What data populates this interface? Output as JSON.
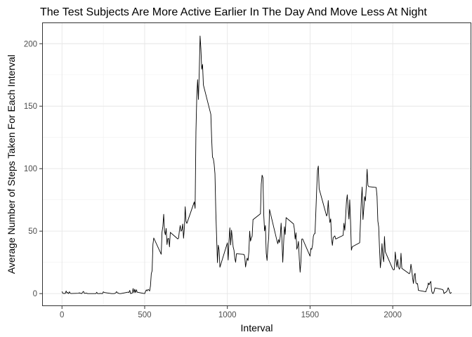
{
  "chart_data": {
    "type": "line",
    "title": "The Test Subjects Are More Active Earlier In The Day And Move Less At Night",
    "xlabel": "Interval",
    "ylabel": "Average Number of Steps Taken For Each Interval",
    "xlim": [
      -120,
      2475
    ],
    "ylim": [
      -10,
      217
    ],
    "x_ticks": [
      0,
      500,
      1000,
      1500,
      2000
    ],
    "y_ticks": [
      0,
      50,
      100,
      150,
      200
    ],
    "grid": true,
    "legend": "none",
    "line_color": "#000000",
    "points": [
      [
        0,
        1.7
      ],
      [
        5,
        0.3
      ],
      [
        10,
        0.1
      ],
      [
        15,
        0.2
      ],
      [
        20,
        0.1
      ],
      [
        25,
        2.1
      ],
      [
        30,
        0.5
      ],
      [
        35,
        0.9
      ],
      [
        40,
        0
      ],
      [
        45,
        1.5
      ],
      [
        50,
        0.3
      ],
      [
        55,
        0.1
      ],
      [
        100,
        0.3
      ],
      [
        105,
        0.7
      ],
      [
        110,
        0.2
      ],
      [
        115,
        0.3
      ],
      [
        120,
        0
      ],
      [
        125,
        1.1
      ],
      [
        130,
        1.8
      ],
      [
        135,
        0.2
      ],
      [
        140,
        0.2
      ],
      [
        145,
        0.4
      ],
      [
        150,
        0.3
      ],
      [
        155,
        0
      ],
      [
        200,
        0
      ],
      [
        205,
        0
      ],
      [
        210,
        1.1
      ],
      [
        215,
        0
      ],
      [
        220,
        0
      ],
      [
        225,
        0.1
      ],
      [
        230,
        0
      ],
      [
        235,
        0.2
      ],
      [
        240,
        0
      ],
      [
        245,
        0
      ],
      [
        250,
        1.5
      ],
      [
        255,
        0.9
      ],
      [
        300,
        0
      ],
      [
        305,
        0
      ],
      [
        310,
        0
      ],
      [
        315,
        0
      ],
      [
        320,
        0.2
      ],
      [
        325,
        0.6
      ],
      [
        330,
        1.6
      ],
      [
        335,
        0.6
      ],
      [
        340,
        0.5
      ],
      [
        345,
        0.1
      ],
      [
        350,
        0
      ],
      [
        355,
        0
      ],
      [
        400,
        1.2
      ],
      [
        405,
        0.9
      ],
      [
        410,
        2.6
      ],
      [
        415,
        0
      ],
      [
        420,
        0.3
      ],
      [
        425,
        0.4
      ],
      [
        430,
        4.1
      ],
      [
        435,
        0.7
      ],
      [
        440,
        3.5
      ],
      [
        445,
        0.8
      ],
      [
        450,
        3.1
      ],
      [
        455,
        1.1
      ],
      [
        500,
        0
      ],
      [
        505,
        1.6
      ],
      [
        510,
        3
      ],
      [
        515,
        2.2
      ],
      [
        520,
        3.3
      ],
      [
        525,
        3
      ],
      [
        530,
        2.1
      ],
      [
        535,
        6.1
      ],
      [
        540,
        16
      ],
      [
        545,
        18.3
      ],
      [
        550,
        39.5
      ],
      [
        555,
        44.5
      ],
      [
        600,
        31.5
      ],
      [
        605,
        49.3
      ],
      [
        610,
        53.8
      ],
      [
        615,
        63.5
      ],
      [
        620,
        50
      ],
      [
        625,
        47.1
      ],
      [
        630,
        52.2
      ],
      [
        635,
        39.3
      ],
      [
        640,
        44
      ],
      [
        645,
        44.2
      ],
      [
        650,
        37.4
      ],
      [
        655,
        49
      ],
      [
        700,
        43.8
      ],
      [
        705,
        44.4
      ],
      [
        710,
        50.5
      ],
      [
        715,
        54.5
      ],
      [
        720,
        49.9
      ],
      [
        725,
        51
      ],
      [
        730,
        55.7
      ],
      [
        735,
        44.3
      ],
      [
        740,
        52.3
      ],
      [
        745,
        69.5
      ],
      [
        750,
        57.8
      ],
      [
        755,
        56.2
      ],
      [
        800,
        73.4
      ],
      [
        805,
        68.2
      ],
      [
        810,
        129.4
      ],
      [
        815,
        157.5
      ],
      [
        820,
        171.2
      ],
      [
        825,
        155.4
      ],
      [
        830,
        177.3
      ],
      [
        835,
        206.2
      ],
      [
        840,
        195.9
      ],
      [
        845,
        179.6
      ],
      [
        850,
        183.4
      ],
      [
        855,
        167
      ],
      [
        900,
        143.5
      ],
      [
        905,
        124
      ],
      [
        910,
        109.1
      ],
      [
        915,
        108.1
      ],
      [
        920,
        103.7
      ],
      [
        925,
        95.9
      ],
      [
        930,
        66.2
      ],
      [
        935,
        45.2
      ],
      [
        940,
        24.8
      ],
      [
        945,
        38.8
      ],
      [
        950,
        35
      ],
      [
        955,
        21.1
      ],
      [
        1000,
        40.6
      ],
      [
        1005,
        26.9
      ],
      [
        1010,
        42.4
      ],
      [
        1015,
        52.7
      ],
      [
        1020,
        38.9
      ],
      [
        1025,
        50.8
      ],
      [
        1030,
        44.3
      ],
      [
        1035,
        37.4
      ],
      [
        1040,
        34.7
      ],
      [
        1045,
        28.3
      ],
      [
        1050,
        25.1
      ],
      [
        1055,
        31.9
      ],
      [
        1100,
        31.4
      ],
      [
        1105,
        29.7
      ],
      [
        1110,
        21.3
      ],
      [
        1115,
        25.5
      ],
      [
        1120,
        28.4
      ],
      [
        1125,
        26.5
      ],
      [
        1130,
        33.4
      ],
      [
        1135,
        50
      ],
      [
        1140,
        42
      ],
      [
        1145,
        44.6
      ],
      [
        1150,
        46
      ],
      [
        1155,
        59.2
      ],
      [
        1200,
        63.9
      ],
      [
        1205,
        87.6
      ],
      [
        1210,
        94.8
      ],
      [
        1215,
        92.8
      ],
      [
        1220,
        63.4
      ],
      [
        1225,
        50.2
      ],
      [
        1230,
        54.5
      ],
      [
        1235,
        32.4
      ],
      [
        1240,
        26.5
      ],
      [
        1245,
        37.7
      ],
      [
        1250,
        45.1
      ],
      [
        1255,
        67.3
      ],
      [
        1300,
        42.3
      ],
      [
        1305,
        39.9
      ],
      [
        1310,
        43.3
      ],
      [
        1315,
        40.9
      ],
      [
        1320,
        46.2
      ],
      [
        1325,
        56.4
      ],
      [
        1330,
        42.8
      ],
      [
        1335,
        25.1
      ],
      [
        1340,
        39.9
      ],
      [
        1345,
        53.5
      ],
      [
        1350,
        47.3
      ],
      [
        1355,
        60.8
      ],
      [
        1400,
        55.8
      ],
      [
        1405,
        51.9
      ],
      [
        1410,
        43.6
      ],
      [
        1415,
        48.7
      ],
      [
        1420,
        35.5
      ],
      [
        1425,
        37.5
      ],
      [
        1430,
        41.8
      ],
      [
        1435,
        27.5
      ],
      [
        1440,
        17.1
      ],
      [
        1445,
        26.1
      ],
      [
        1450,
        43.6
      ],
      [
        1455,
        43.8
      ],
      [
        1500,
        30
      ],
      [
        1505,
        36.1
      ],
      [
        1510,
        35.5
      ],
      [
        1515,
        38.8
      ],
      [
        1520,
        45.9
      ],
      [
        1525,
        47.8
      ],
      [
        1530,
        48.1
      ],
      [
        1535,
        65.3
      ],
      [
        1540,
        82.9
      ],
      [
        1545,
        98.7
      ],
      [
        1550,
        102.1
      ],
      [
        1555,
        83.9
      ],
      [
        1600,
        62.1
      ],
      [
        1605,
        64.1
      ],
      [
        1610,
        74.5
      ],
      [
        1615,
        63.2
      ],
      [
        1620,
        56.9
      ],
      [
        1625,
        59.8
      ],
      [
        1630,
        43.9
      ],
      [
        1635,
        38.6
      ],
      [
        1640,
        44.7
      ],
      [
        1645,
        45.5
      ],
      [
        1650,
        46.2
      ],
      [
        1655,
        43.7
      ],
      [
        1700,
        46.6
      ],
      [
        1705,
        56.3
      ],
      [
        1710,
        50.7
      ],
      [
        1715,
        61.2
      ],
      [
        1720,
        73.4
      ],
      [
        1725,
        79.1
      ],
      [
        1730,
        68.9
      ],
      [
        1735,
        59.7
      ],
      [
        1740,
        75.1
      ],
      [
        1745,
        56.5
      ],
      [
        1750,
        34.8
      ],
      [
        1755,
        37.5
      ],
      [
        1800,
        40.7
      ],
      [
        1805,
        58
      ],
      [
        1810,
        74.7
      ],
      [
        1815,
        85.3
      ],
      [
        1820,
        59.3
      ],
      [
        1825,
        67.8
      ],
      [
        1830,
        77.7
      ],
      [
        1835,
        74.2
      ],
      [
        1840,
        85.3
      ],
      [
        1845,
        99.5
      ],
      [
        1850,
        86.6
      ],
      [
        1855,
        85.6
      ],
      [
        1900,
        84.9
      ],
      [
        1905,
        77.8
      ],
      [
        1910,
        58
      ],
      [
        1915,
        53.4
      ],
      [
        1920,
        36.3
      ],
      [
        1925,
        20.7
      ],
      [
        1930,
        27.4
      ],
      [
        1935,
        40
      ],
      [
        1940,
        30.2
      ],
      [
        1945,
        25.5
      ],
      [
        1950,
        45.7
      ],
      [
        1955,
        33.5
      ],
      [
        2000,
        19.6
      ],
      [
        2005,
        19
      ],
      [
        2010,
        19.3
      ],
      [
        2015,
        33.3
      ],
      [
        2020,
        26.8
      ],
      [
        2025,
        21.2
      ],
      [
        2030,
        27.3
      ],
      [
        2035,
        21.3
      ],
      [
        2040,
        19.5
      ],
      [
        2045,
        21.3
      ],
      [
        2050,
        32.3
      ],
      [
        2055,
        20.2
      ],
      [
        2100,
        15.9
      ],
      [
        2105,
        17.2
      ],
      [
        2110,
        23.5
      ],
      [
        2115,
        19.2
      ],
      [
        2120,
        12.5
      ],
      [
        2125,
        8.1
      ],
      [
        2130,
        14.7
      ],
      [
        2135,
        16.3
      ],
      [
        2140,
        8.7
      ],
      [
        2145,
        7.8
      ],
      [
        2150,
        8.1
      ],
      [
        2155,
        2.6
      ],
      [
        2200,
        1.5
      ],
      [
        2205,
        3.7
      ],
      [
        2210,
        4.8
      ],
      [
        2215,
        8.5
      ],
      [
        2220,
        7.1
      ],
      [
        2225,
        8.7
      ],
      [
        2230,
        9.8
      ],
      [
        2235,
        2.2
      ],
      [
        2240,
        0.3
      ],
      [
        2245,
        0.1
      ],
      [
        2250,
        1.6
      ],
      [
        2255,
        4.6
      ],
      [
        2300,
        3.3
      ],
      [
        2305,
        2.8
      ],
      [
        2310,
        0
      ],
      [
        2315,
        0.8
      ],
      [
        2320,
        1
      ],
      [
        2325,
        1.6
      ],
      [
        2330,
        2.6
      ],
      [
        2335,
        4.7
      ],
      [
        2340,
        3.3
      ],
      [
        2345,
        0.6
      ],
      [
        2350,
        0.2
      ],
      [
        2355,
        1.1
      ]
    ]
  }
}
